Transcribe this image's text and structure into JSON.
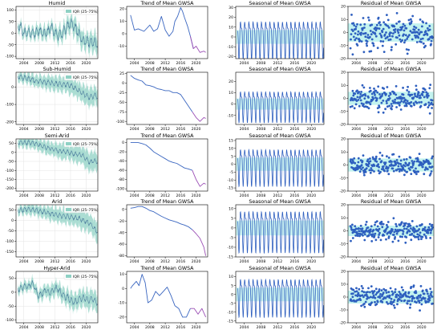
{
  "colors": {
    "mean_line": "#4a7a9c",
    "iqr_fill": "#8fd1c4",
    "trend_line": "#3a66c0",
    "trend_late": "#9b4fb5",
    "seasonal_line": "#2e5fbf",
    "residual_point": "#2e5fbf",
    "band_fill": "#b9f1ec",
    "grid": "#e3e3e3"
  },
  "legend_label": "IQR (25–75%)",
  "col_titles": {
    "trend": "Trend of Mean GWSA",
    "seasonal": "Seasonal of Mean GWSA",
    "residual": "Residual of Mean GWSA"
  },
  "rows": [
    {
      "name": "Humid",
      "gwsa": {
        "ylim": [
          -110,
          115
        ],
        "yticks": [
          -100,
          -50,
          0,
          50,
          100
        ],
        "xticks": [
          "2004",
          "2008",
          "2012",
          "2016",
          "2020"
        ]
      },
      "trend": {
        "ylim": [
          -20,
          22
        ],
        "yticks": [
          -10,
          0,
          10,
          20
        ],
        "xticks": [
          "2004",
          "2008",
          "2012",
          "2016",
          "2020"
        ],
        "x": [
          2003.0,
          2004.0,
          2005.0,
          2006.5,
          2008.0,
          2009.0,
          2010.0,
          2011.0,
          2012.0,
          2013.0,
          2014.0,
          2014.5,
          2015.2,
          2016.0,
          2016.5,
          2017.0,
          2017.8,
          2018.5,
          2019.3,
          2020.0,
          2021.0,
          2022.0,
          2022.5
        ],
        "y": [
          15,
          3,
          4,
          2,
          7,
          2,
          4,
          14,
          3,
          -2,
          2,
          10,
          14,
          21,
          18,
          13,
          6,
          -2,
          -12,
          -10,
          -15,
          -14,
          -15
        ]
      },
      "seasonal": {
        "ylim": [
          -22,
          31
        ],
        "yticks": [
          -20,
          -10,
          0,
          10,
          20,
          30
        ],
        "xticks": [
          "2004",
          "2008",
          "2012",
          "2016",
          "2020"
        ],
        "amplitude": 20
      },
      "residual": {
        "ylim": [
          -20,
          20
        ],
        "yticks": [
          -20,
          -10,
          0,
          10,
          20
        ],
        "xticks": [
          "2004",
          "2008",
          "2012",
          "2016",
          "2020"
        ],
        "band": [
          -7,
          7
        ],
        "spread": 8
      }
    },
    {
      "name": "Sub-Humid",
      "gwsa": {
        "ylim": [
          -215,
          85
        ],
        "yticks": [
          -200,
          -100,
          0
        ],
        "xticks": [
          "2004",
          "2008",
          "2012",
          "2016",
          "2020"
        ]
      },
      "trend": {
        "ylim": [
          -108,
          28
        ],
        "yticks": [
          -100,
          -75,
          -50,
          -25,
          0,
          25
        ],
        "xticks": [
          "2004",
          "2008",
          "2012",
          "2016",
          "2020"
        ],
        "x": [
          2003.0,
          2004.0,
          2005.0,
          2006.0,
          2007.0,
          2008.0,
          2009.0,
          2010.0,
          2011.0,
          2012.0,
          2013.0,
          2014.0,
          2015.0,
          2016.0,
          2017.0,
          2018.0,
          2019.0,
          2020.0,
          2021.0,
          2022.0,
          2022.5
        ],
        "y": [
          20,
          12,
          8,
          5,
          -5,
          -7,
          -10,
          -15,
          -17,
          -20,
          -20,
          -25,
          -25,
          -30,
          -45,
          -60,
          -75,
          -90,
          -100,
          -90,
          -92
        ]
      },
      "seasonal": {
        "ylim": [
          -18,
          28
        ],
        "yticks": [
          -10,
          0,
          10,
          20
        ],
        "xticks": [
          "2004",
          "2008",
          "2012",
          "2016",
          "2020"
        ],
        "amplitude": 14
      },
      "residual": {
        "ylim": [
          -20,
          20
        ],
        "yticks": [
          -20,
          -10,
          0,
          10,
          20
        ],
        "xticks": [
          "2004",
          "2008",
          "2012",
          "2016",
          "2020"
        ],
        "band": [
          -5,
          5
        ],
        "spread": 6
      }
    },
    {
      "name": "Semi-Arid",
      "gwsa": {
        "ylim": [
          -215,
          75
        ],
        "yticks": [
          -200,
          -150,
          -100,
          -50,
          0,
          50
        ],
        "xticks": [
          "2004",
          "2008",
          "2012",
          "2016",
          "2020"
        ]
      },
      "trend": {
        "ylim": [
          -105,
          8
        ],
        "yticks": [
          -100,
          -80,
          -60,
          -40,
          -20,
          0
        ],
        "xticks": [
          "2004",
          "2008",
          "2012",
          "2016",
          "2020"
        ],
        "x": [
          2003.0,
          2004.0,
          2005.0,
          2006.0,
          2007.0,
          2008.0,
          2009.0,
          2010.0,
          2011.0,
          2012.0,
          2013.0,
          2014.0,
          2015.0,
          2016.0,
          2017.0,
          2018.0,
          2019.0,
          2019.5,
          2020.0,
          2021.0,
          2022.0,
          2022.5
        ],
        "y": [
          0,
          0,
          0,
          -2,
          -5,
          -12,
          -20,
          -25,
          -30,
          -35,
          -40,
          -43,
          -45,
          -50,
          -55,
          -57,
          -60,
          -70,
          -80,
          -95,
          -88,
          -90
        ]
      },
      "seasonal": {
        "ylim": [
          -17,
          16
        ],
        "yticks": [
          -15,
          -10,
          -5,
          0,
          5,
          10,
          15
        ],
        "xticks": [
          "2004",
          "2008",
          "2012",
          "2016",
          "2020"
        ],
        "amplitude": 12
      },
      "residual": {
        "ylim": [
          -20,
          20
        ],
        "yticks": [
          -20,
          -10,
          0,
          10,
          20
        ],
        "xticks": [
          "2004",
          "2008",
          "2012",
          "2016",
          "2020"
        ],
        "band": [
          -5,
          5
        ],
        "spread": 5
      }
    },
    {
      "name": "Arid",
      "gwsa": {
        "ylim": [
          -175,
          75
        ],
        "yticks": [
          -150,
          -100,
          -50,
          0,
          50
        ],
        "xticks": [
          "2004",
          "2008",
          "2012",
          "2016",
          "2020"
        ]
      },
      "trend": {
        "ylim": [
          -82,
          8
        ],
        "yticks": [
          -80,
          -60,
          -40,
          -20,
          0
        ],
        "xticks": [
          "2004",
          "2008",
          "2012",
          "2016",
          "2020"
        ],
        "x": [
          2003.0,
          2004.0,
          2005.0,
          2006.0,
          2007.0,
          2008.0,
          2009.0,
          2010.0,
          2011.0,
          2012.0,
          2013.0,
          2014.0,
          2015.0,
          2016.0,
          2017.0,
          2018.0,
          2019.0,
          2020.0,
          2021.0,
          2022.0,
          2022.5
        ],
        "y": [
          2,
          3,
          5,
          5,
          2,
          -2,
          -4,
          -8,
          -12,
          -15,
          -18,
          -20,
          -22,
          -25,
          -27,
          -30,
          -35,
          -42,
          -50,
          -65,
          -80
        ]
      },
      "seasonal": {
        "ylim": [
          -15,
          12
        ],
        "yticks": [
          -15,
          -10,
          -5,
          0,
          5,
          10
        ],
        "xticks": [
          "2004",
          "2008",
          "2012",
          "2016",
          "2020"
        ],
        "amplitude": 11
      },
      "residual": {
        "ylim": [
          -20,
          20
        ],
        "yticks": [
          -20,
          -10,
          0,
          10,
          20
        ],
        "xticks": [
          "2004",
          "2008",
          "2012",
          "2016",
          "2020"
        ],
        "band": [
          -4,
          4
        ],
        "spread": 5
      }
    },
    {
      "name": "Hyper-Arid",
      "gwsa": {
        "ylim": [
          -110,
          75
        ],
        "yticks": [
          -100,
          -50,
          0,
          50
        ],
        "xticks": [
          "2004",
          "2008",
          "2012",
          "2016",
          "2020"
        ]
      },
      "trend": {
        "ylim": [
          -24,
          12
        ],
        "yticks": [
          -20,
          -10,
          0,
          10
        ],
        "xticks": [
          "2004",
          "2008",
          "2012",
          "2016",
          "2020"
        ],
        "x": [
          2003.0,
          2003.5,
          2004.5,
          2005.2,
          2006.0,
          2006.8,
          2007.5,
          2008.5,
          2009.5,
          2010.5,
          2011.5,
          2012.5,
          2013.5,
          2014.5,
          2015.5,
          2016.5,
          2017.5,
          2018.5,
          2019.5,
          2020.5,
          2021.5,
          2022.5
        ],
        "y": [
          0,
          2,
          5,
          2,
          10,
          4,
          -10,
          -8,
          -2,
          -5,
          -2,
          1,
          -5,
          -12,
          -14,
          -20,
          -20,
          -14,
          -14,
          -18,
          -14,
          -20
        ]
      },
      "seasonal": {
        "ylim": [
          -16,
          13
        ],
        "yticks": [
          -15,
          -10,
          -5,
          0,
          5,
          10
        ],
        "xticks": [
          "2004",
          "2008",
          "2012",
          "2016",
          "2020"
        ],
        "amplitude": 11
      },
      "residual": {
        "ylim": [
          -20,
          20
        ],
        "yticks": [
          -20,
          -10,
          0,
          10,
          20
        ],
        "xticks": [
          "2004",
          "2008",
          "2012",
          "2016",
          "2020"
        ],
        "band": [
          -5,
          5
        ],
        "spread": 5
      }
    }
  ],
  "chart_data": [
    {
      "type": "area",
      "title": "Humid",
      "series": [
        {
          "name": "IQR (25–75%)"
        }
      ],
      "ylim": [
        -110,
        115
      ],
      "xlim": [
        2002,
        2023
      ]
    },
    {
      "type": "line",
      "title": "Trend of Mean GWSA",
      "ylim": [
        -20,
        22
      ]
    },
    {
      "type": "line",
      "title": "Seasonal of Mean GWSA",
      "ylim": [
        -22,
        31
      ]
    },
    {
      "type": "scatter",
      "title": "Residual of Mean GWSA",
      "ylim": [
        -20,
        20
      ]
    },
    {
      "type": "area",
      "title": "Sub-Humid",
      "series": [
        {
          "name": "IQR (25–75%)"
        }
      ],
      "ylim": [
        -215,
        85
      ]
    },
    {
      "type": "line",
      "title": "Trend of Mean GWSA",
      "ylim": [
        -108,
        28
      ]
    },
    {
      "type": "line",
      "title": "Seasonal of Mean GWSA",
      "ylim": [
        -18,
        28
      ]
    },
    {
      "type": "scatter",
      "title": "Residual of Mean GWSA",
      "ylim": [
        -20,
        20
      ]
    },
    {
      "type": "area",
      "title": "Semi-Arid",
      "series": [
        {
          "name": "IQR (25–75%)"
        }
      ],
      "ylim": [
        -215,
        75
      ]
    },
    {
      "type": "line",
      "title": "Trend of Mean GWSA",
      "ylim": [
        -105,
        8
      ]
    },
    {
      "type": "line",
      "title": "Seasonal of Mean GWSA",
      "ylim": [
        -17,
        16
      ]
    },
    {
      "type": "scatter",
      "title": "Residual of Mean GWSA",
      "ylim": [
        -20,
        20
      ]
    },
    {
      "type": "area",
      "title": "Arid",
      "series": [
        {
          "name": "IQR (25–75%)"
        }
      ],
      "ylim": [
        -175,
        75
      ]
    },
    {
      "type": "line",
      "title": "Trend of Mean GWSA",
      "ylim": [
        -82,
        8
      ]
    },
    {
      "type": "line",
      "title": "Seasonal of Mean GWSA",
      "ylim": [
        -15,
        12
      ]
    },
    {
      "type": "scatter",
      "title": "Residual of Mean GWSA",
      "ylim": [
        -20,
        20
      ]
    },
    {
      "type": "area",
      "title": "Hyper-Arid",
      "series": [
        {
          "name": "IQR (25–75%)"
        }
      ],
      "ylim": [
        -110,
        75
      ]
    },
    {
      "type": "line",
      "title": "Trend of Mean GWSA",
      "ylim": [
        -24,
        12
      ]
    },
    {
      "type": "line",
      "title": "Seasonal of Mean GWSA",
      "ylim": [
        -16,
        13
      ]
    },
    {
      "type": "scatter",
      "title": "Residual of Mean GWSA",
      "ylim": [
        -20,
        20
      ]
    }
  ]
}
